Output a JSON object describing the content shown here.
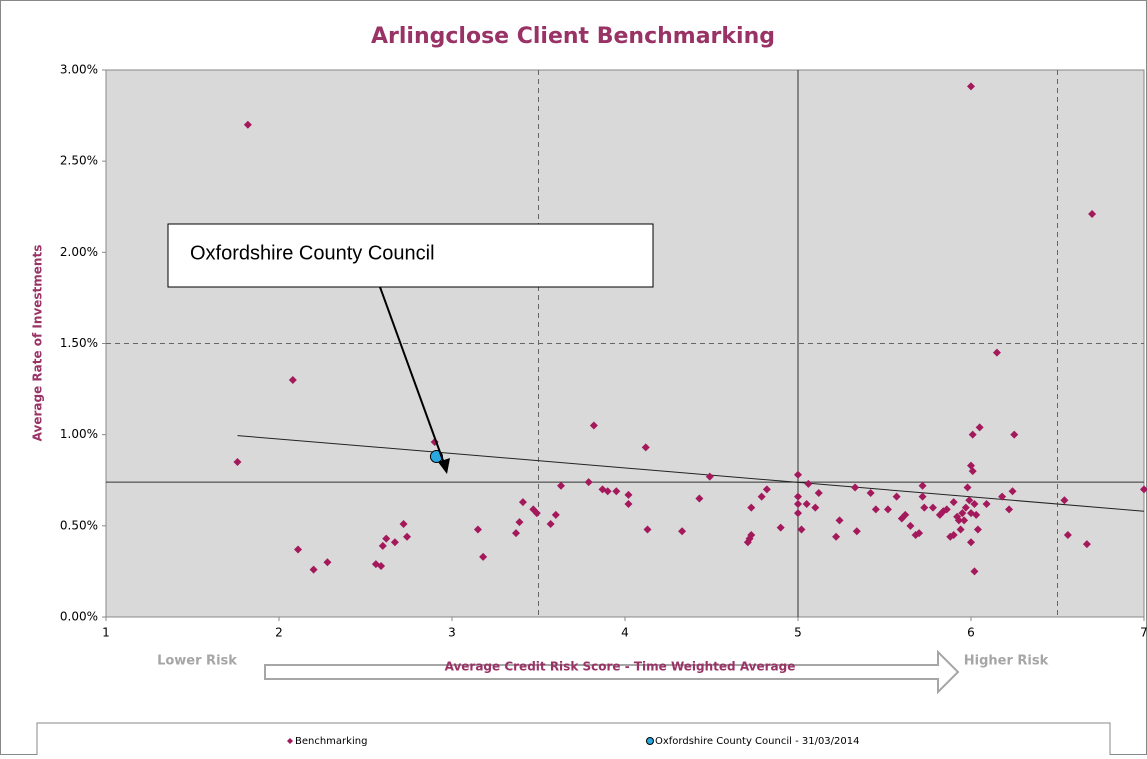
{
  "chart_data": {
    "type": "scatter",
    "title": "Arlingclose Client Benchmarking",
    "xlabel": "Average Credit Risk Score - Time Weighted Average",
    "ylabel": "Average Rate of Investments",
    "x_low_label": "Lower Risk",
    "x_high_label": "Higher Risk",
    "annotation": "Oxfordshire County Council",
    "xlim": [
      1,
      7
    ],
    "ylim": [
      0,
      3
    ],
    "xticks": [
      1,
      2,
      3,
      4,
      5,
      6,
      7
    ],
    "yticks": [
      {
        "value": 0,
        "label": "0.00%"
      },
      {
        "value": 0.5,
        "label": "0.50%"
      },
      {
        "value": 1,
        "label": "1.00%"
      },
      {
        "value": 1.5,
        "label": "1.50%"
      },
      {
        "value": 2,
        "label": "2.00%"
      },
      {
        "value": 2.5,
        "label": "2.50%"
      },
      {
        "value": 3,
        "label": "3.00%"
      }
    ],
    "vlines": [
      {
        "value": 3.5,
        "style": "dashed"
      },
      {
        "value": 5,
        "style": "solid"
      },
      {
        "value": 6.5,
        "style": "dashed"
      }
    ],
    "hlines": [
      {
        "value": 0.74,
        "style": "solid"
      },
      {
        "value": 1.5,
        "style": "dashed"
      }
    ],
    "trendline": {
      "x": [
        1.76,
        7
      ],
      "values": [
        0.995,
        0.58
      ]
    },
    "series": [
      {
        "name": "Benchmarking",
        "color": "#a3195b",
        "marker": "diamond",
        "x": [
          1.76,
          1.82,
          2.08,
          2.11,
          2.2,
          2.28,
          2.56,
          2.59,
          2.6,
          2.62,
          2.67,
          2.72,
          2.74,
          2.9,
          3.15,
          3.18,
          3.37,
          3.39,
          3.41,
          3.47,
          3.49,
          3.57,
          3.6,
          3.63,
          3.79,
          3.82,
          3.87,
          3.9,
          3.95,
          4.02,
          4.02,
          4.12,
          4.13,
          4.33,
          4.43,
          4.49,
          4.71,
          4.72,
          4.73,
          4.73,
          4.79,
          4.82,
          4.9,
          5.0,
          5.0,
          5.0,
          5.0,
          5.02,
          5.05,
          5.06,
          5.1,
          5.12,
          5.22,
          5.24,
          5.33,
          5.34,
          5.42,
          5.45,
          5.52,
          5.57,
          5.6,
          5.62,
          5.65,
          5.68,
          5.7,
          5.72,
          5.72,
          5.73,
          5.78,
          5.82,
          5.84,
          5.86,
          5.88,
          5.9,
          5.9,
          5.92,
          5.93,
          5.94,
          5.95,
          5.96,
          5.97,
          5.98,
          5.99,
          6.0,
          6.0,
          6.0,
          6.0,
          6.01,
          6.01,
          6.02,
          6.02,
          6.03,
          6.04,
          6.05,
          6.09,
          6.15,
          6.18,
          6.22,
          6.24,
          6.25,
          6.54,
          6.56,
          6.67,
          6.7,
          7.0
        ],
        "values": [
          0.85,
          2.7,
          1.3,
          0.37,
          0.26,
          0.3,
          0.29,
          0.28,
          0.39,
          0.43,
          0.41,
          0.51,
          0.44,
          0.96,
          0.48,
          0.33,
          0.46,
          0.52,
          0.63,
          0.59,
          0.57,
          0.51,
          0.56,
          0.72,
          0.74,
          1.05,
          0.7,
          0.69,
          0.69,
          0.62,
          0.67,
          0.93,
          0.48,
          0.47,
          0.65,
          0.77,
          0.41,
          0.43,
          0.45,
          0.6,
          0.66,
          0.7,
          0.49,
          0.78,
          0.66,
          0.62,
          0.57,
          0.48,
          0.62,
          0.73,
          0.6,
          0.68,
          0.44,
          0.53,
          0.71,
          0.47,
          0.68,
          0.59,
          0.59,
          0.66,
          0.54,
          0.56,
          0.5,
          0.45,
          0.46,
          0.72,
          0.66,
          0.6,
          0.6,
          0.56,
          0.58,
          0.59,
          0.44,
          0.45,
          0.63,
          0.55,
          0.53,
          0.48,
          0.57,
          0.53,
          0.6,
          0.71,
          0.64,
          2.91,
          0.83,
          0.57,
          0.41,
          1.0,
          0.8,
          0.25,
          0.62,
          0.56,
          0.48,
          1.04,
          0.62,
          1.45,
          0.66,
          0.59,
          0.69,
          1.0,
          0.64,
          0.45,
          0.4,
          2.21,
          0.7
        ]
      },
      {
        "name": "Oxfordshire County Council - 31/03/2014",
        "color": "#29a8e0",
        "marker": "circle",
        "x": [
          2.91
        ],
        "values": [
          0.88
        ]
      }
    ]
  }
}
